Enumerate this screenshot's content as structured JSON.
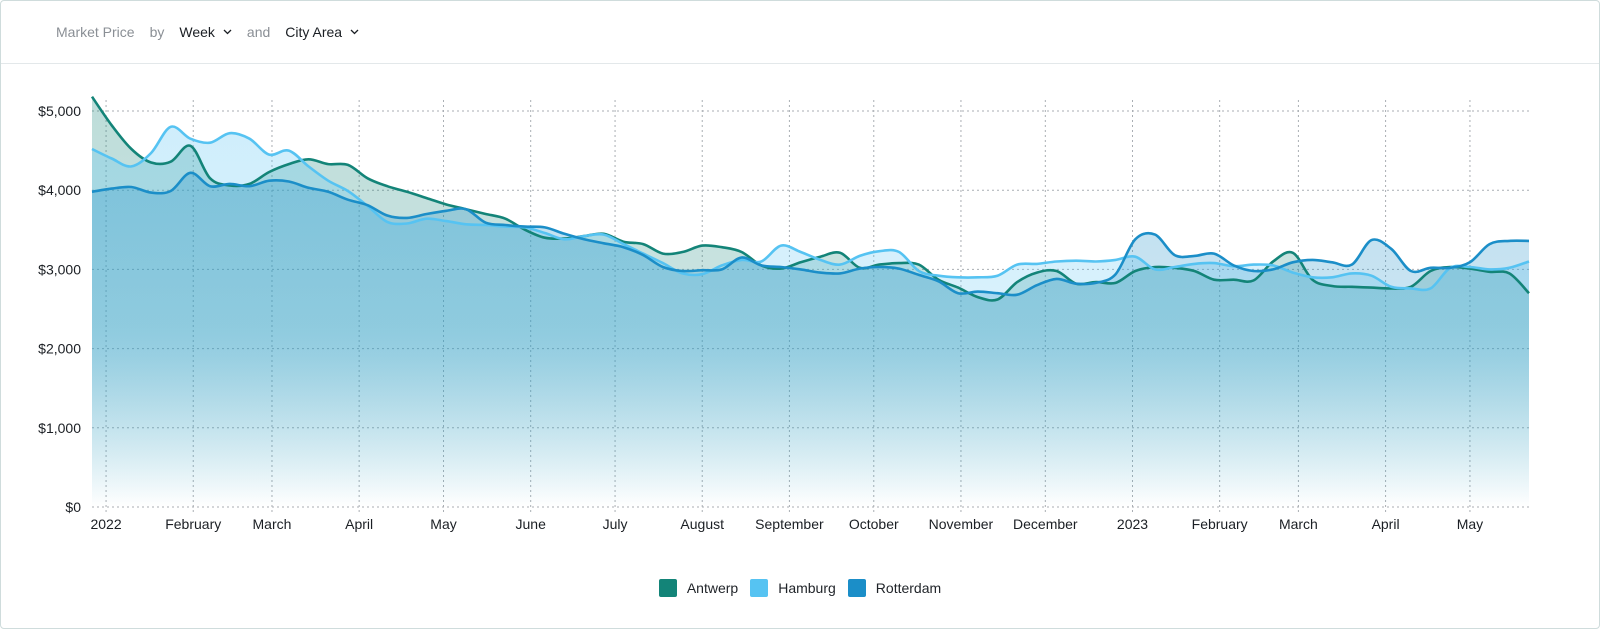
{
  "header": {
    "metric_label": "Market Price",
    "by_label": "by",
    "period_value": "Week",
    "and_label": "and",
    "group_value": "City Area"
  },
  "colors": {
    "Antwerp": "#138478",
    "Hamburg": "#56c3f2",
    "Rotterdam": "#1b8ec8"
  },
  "chart_data": {
    "type": "area",
    "title": "",
    "xlabel": "",
    "ylabel": "",
    "ylim": [
      0,
      5000
    ],
    "xlim": [
      "2021-12-27",
      "2023-05-22"
    ],
    "y_ticks": [
      0,
      1000,
      2000,
      3000,
      4000,
      5000
    ],
    "y_tick_labels": [
      "$0",
      "$1,000",
      "$2,000",
      "$3,000",
      "$4,000",
      "$5,000"
    ],
    "x_ticks": [
      {
        "date": "2022-01-01",
        "label": "2022"
      },
      {
        "date": "2022-02-01",
        "label": "February"
      },
      {
        "date": "2022-03-01",
        "label": "March"
      },
      {
        "date": "2022-04-01",
        "label": "April"
      },
      {
        "date": "2022-05-01",
        "label": "May"
      },
      {
        "date": "2022-06-01",
        "label": "June"
      },
      {
        "date": "2022-07-01",
        "label": "July"
      },
      {
        "date": "2022-08-01",
        "label": "August"
      },
      {
        "date": "2022-09-01",
        "label": "September"
      },
      {
        "date": "2022-10-01",
        "label": "October"
      },
      {
        "date": "2022-11-01",
        "label": "November"
      },
      {
        "date": "2022-12-01",
        "label": "December"
      },
      {
        "date": "2023-01-01",
        "label": "2023"
      },
      {
        "date": "2023-02-01",
        "label": "February"
      },
      {
        "date": "2023-03-01",
        "label": "March"
      },
      {
        "date": "2023-04-01",
        "label": "April"
      },
      {
        "date": "2023-05-01",
        "label": "May"
      }
    ],
    "grid": true,
    "legend_position": "bottom",
    "x": [
      "2021-12-27",
      "2022-01-03",
      "2022-01-10",
      "2022-01-17",
      "2022-01-24",
      "2022-01-31",
      "2022-02-07",
      "2022-02-14",
      "2022-02-21",
      "2022-02-28",
      "2022-03-07",
      "2022-03-14",
      "2022-03-21",
      "2022-03-28",
      "2022-04-04",
      "2022-04-11",
      "2022-04-18",
      "2022-04-25",
      "2022-05-02",
      "2022-05-09",
      "2022-05-16",
      "2022-05-23",
      "2022-05-30",
      "2022-06-06",
      "2022-06-13",
      "2022-06-20",
      "2022-06-27",
      "2022-07-04",
      "2022-07-11",
      "2022-07-18",
      "2022-07-25",
      "2022-08-01",
      "2022-08-08",
      "2022-08-15",
      "2022-08-22",
      "2022-08-29",
      "2022-09-05",
      "2022-09-12",
      "2022-09-19",
      "2022-09-26",
      "2022-10-03",
      "2022-10-10",
      "2022-10-17",
      "2022-10-24",
      "2022-10-31",
      "2022-11-07",
      "2022-11-14",
      "2022-11-21",
      "2022-11-28",
      "2022-12-05",
      "2022-12-12",
      "2022-12-19",
      "2022-12-26",
      "2023-01-02",
      "2023-01-09",
      "2023-01-16",
      "2023-01-23",
      "2023-01-30",
      "2023-02-06",
      "2023-02-13",
      "2023-02-20",
      "2023-02-27",
      "2023-03-06",
      "2023-03-13",
      "2023-03-20",
      "2023-03-27",
      "2023-04-03",
      "2023-04-10",
      "2023-04-17",
      "2023-04-24",
      "2023-05-01",
      "2023-05-08",
      "2023-05-15",
      "2023-05-22"
    ],
    "series": [
      {
        "name": "Antwerp",
        "values": [
          5180,
          4820,
          4520,
          4350,
          4360,
          4560,
          4150,
          4060,
          4080,
          4230,
          4330,
          4390,
          4330,
          4320,
          4150,
          4050,
          3980,
          3900,
          3820,
          3760,
          3700,
          3640,
          3500,
          3400,
          3390,
          3420,
          3450,
          3350,
          3320,
          3200,
          3220,
          3300,
          3280,
          3220,
          3050,
          3010,
          3090,
          3160,
          3210,
          3020,
          3060,
          3080,
          3060,
          2870,
          2770,
          2650,
          2620,
          2840,
          2960,
          2980,
          2820,
          2840,
          2830,
          2980,
          3030,
          3020,
          2980,
          2870,
          2870,
          2860,
          3100,
          3210,
          2870,
          2790,
          2780,
          2770,
          2760,
          2780,
          2980,
          3030,
          3010,
          2970,
          2950,
          2700
        ]
      },
      {
        "name": "Hamburg",
        "values": [
          4520,
          4400,
          4300,
          4470,
          4800,
          4650,
          4600,
          4720,
          4650,
          4450,
          4500,
          4300,
          4120,
          3990,
          3800,
          3600,
          3580,
          3640,
          3610,
          3570,
          3560,
          3540,
          3530,
          3460,
          3380,
          3420,
          3440,
          3320,
          3200,
          3080,
          2950,
          2940,
          3050,
          3120,
          3100,
          3300,
          3220,
          3120,
          3060,
          3170,
          3230,
          3220,
          2980,
          2920,
          2900,
          2900,
          2920,
          3060,
          3070,
          3100,
          3110,
          3100,
          3120,
          3160,
          3000,
          3030,
          3070,
          3080,
          3040,
          3060,
          3050,
          2960,
          2900,
          2900,
          2950,
          2920,
          2780,
          2760,
          2760,
          3020,
          3030,
          3000,
          3020,
          3100
        ]
      },
      {
        "name": "Rotterdam",
        "values": [
          3980,
          4020,
          4040,
          3970,
          3990,
          4220,
          4050,
          4080,
          4050,
          4120,
          4110,
          4030,
          3980,
          3880,
          3810,
          3680,
          3650,
          3700,
          3740,
          3760,
          3590,
          3560,
          3540,
          3530,
          3450,
          3380,
          3330,
          3280,
          3180,
          3030,
          2980,
          2990,
          3000,
          3150,
          3050,
          3030,
          3000,
          2960,
          2950,
          3010,
          3030,
          3010,
          2930,
          2850,
          2700,
          2720,
          2700,
          2680,
          2800,
          2880,
          2820,
          2830,
          2940,
          3380,
          3440,
          3180,
          3170,
          3200,
          3050,
          2980,
          3000,
          3090,
          3120,
          3090,
          3060,
          3370,
          3260,
          2980,
          3020,
          3020,
          3090,
          3320,
          3360,
          3360
        ]
      }
    ]
  },
  "legend": [
    {
      "name": "Antwerp",
      "color": "#138478"
    },
    {
      "name": "Hamburg",
      "color": "#56c3f2"
    },
    {
      "name": "Rotterdam",
      "color": "#1b8ec8"
    }
  ]
}
